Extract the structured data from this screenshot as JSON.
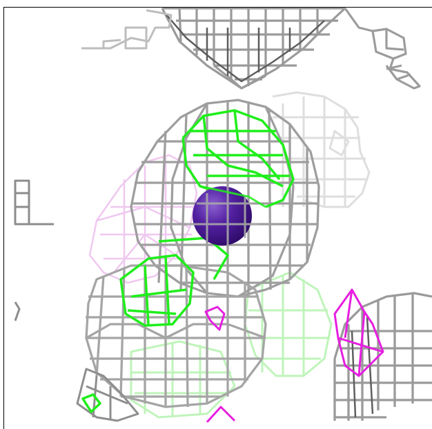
{
  "viewer": {
    "background": "#ffffff",
    "frame_color": "#000000",
    "mesh_colors": {
      "gray": "#a9a9a9",
      "gray_dark": "#5d5d5d",
      "gray_faint": "#dadada",
      "green": "#22f01d",
      "green_faint": "#b8f5b3",
      "magenta": "#e81ee0",
      "magenta_faint": "#efc4ef"
    },
    "atom": {
      "name": "central-atom-sphere",
      "color": "#4a1894",
      "highlight": "#7a4fc2"
    }
  }
}
